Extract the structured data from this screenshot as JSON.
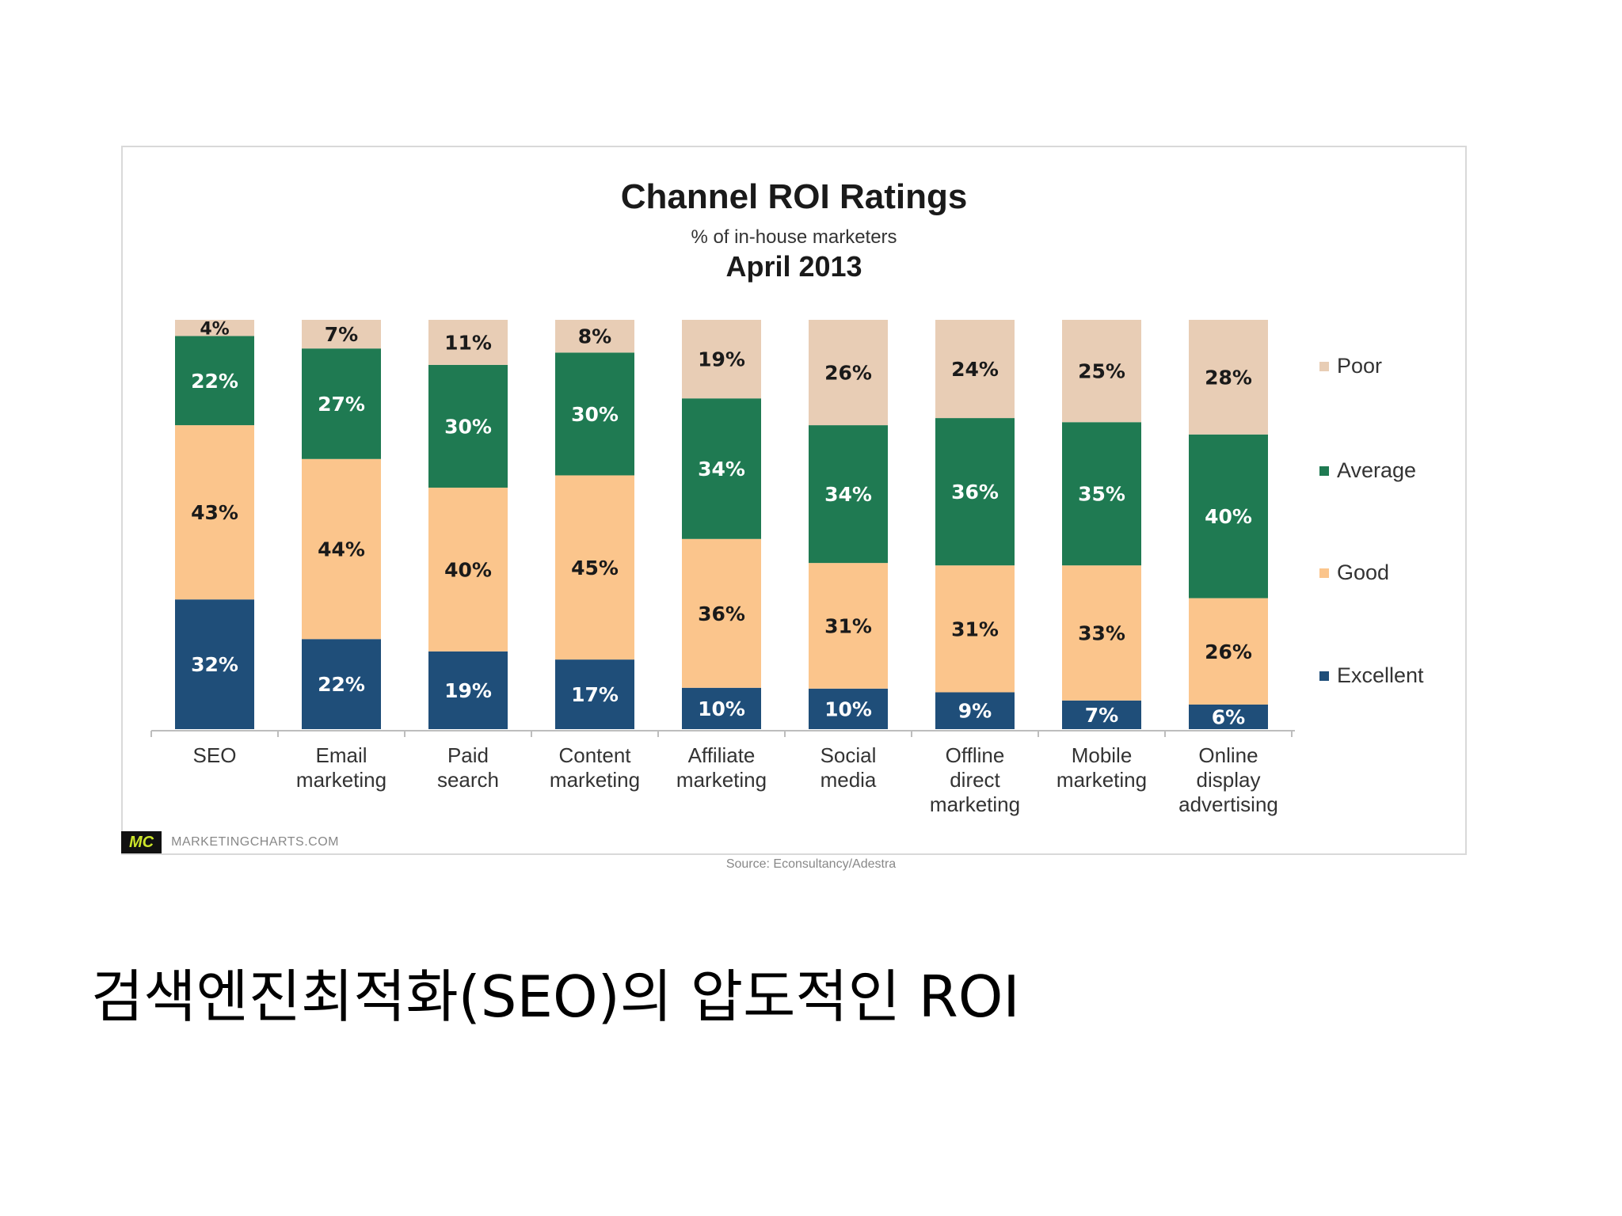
{
  "chart_data": {
    "type": "bar",
    "stacked": true,
    "title": "Channel ROI Ratings",
    "subtitle": "% of in-house marketers",
    "date_label": "April 2013",
    "categories": [
      [
        "SEO"
      ],
      [
        "Email",
        "marketing"
      ],
      [
        "Paid",
        "search"
      ],
      [
        "Content",
        "marketing"
      ],
      [
        "Affiliate",
        "marketing"
      ],
      [
        "Social",
        "media"
      ],
      [
        "Offline",
        "direct",
        "marketing"
      ],
      [
        "Mobile",
        "marketing"
      ],
      [
        "Online",
        "display",
        "advertising"
      ]
    ],
    "series": [
      {
        "name": "Excellent",
        "color": "#1f4e79",
        "values": [
          32,
          22,
          19,
          17,
          10,
          10,
          9,
          7,
          6
        ]
      },
      {
        "name": "Good",
        "color": "#fbc58c",
        "values": [
          43,
          44,
          40,
          45,
          36,
          31,
          31,
          33,
          26
        ]
      },
      {
        "name": "Average",
        "color": "#1f7a52",
        "values": [
          22,
          27,
          30,
          30,
          34,
          34,
          36,
          35,
          40
        ]
      },
      {
        "name": "Poor",
        "color": "#e8cdb5",
        "values": [
          4,
          7,
          11,
          8,
          19,
          26,
          24,
          25,
          28
        ]
      }
    ],
    "legend_order": [
      "Poor",
      "Average",
      "Good",
      "Excellent"
    ],
    "legend_position": "right",
    "ylim": [
      0,
      100
    ],
    "grid": false,
    "value_label_suffix": "%"
  },
  "branding": {
    "logo": "MC",
    "site": "MARKETINGCHARTS.COM"
  },
  "source_note": "Source: Econsultancy/Adestra",
  "caption": "검색엔진최적화(SEO)의 압도적인 ROI"
}
